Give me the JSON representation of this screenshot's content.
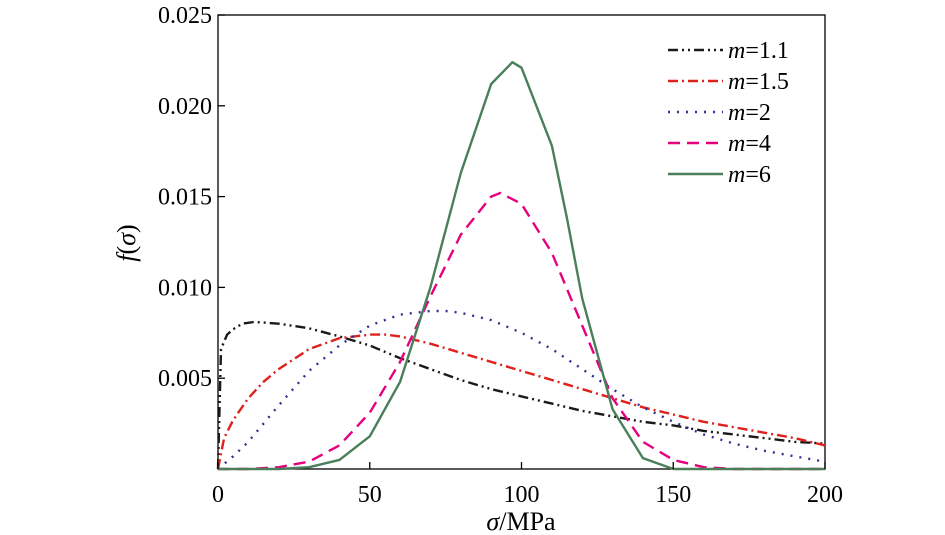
{
  "chart_data": {
    "type": "line",
    "title": "",
    "xlabel": {
      "symbol": "σ",
      "unit": "/MPa"
    },
    "ylabel": {
      "name": "f",
      "arg": "σ"
    },
    "xlim": [
      0,
      200
    ],
    "ylim": [
      0,
      0.025
    ],
    "xticks": [
      "0",
      "50",
      "100",
      "150",
      "200"
    ],
    "yticks": [
      "0.005",
      "0.010",
      "0.015",
      "0.020",
      "0.025"
    ],
    "grid": false,
    "legend_position": "top-right",
    "series": [
      {
        "legend_var": "m",
        "legend_value": "=1.1",
        "color": "#1a1a1a",
        "dash": "10,4,2,4,2,4",
        "x": [
          0,
          1,
          3,
          5,
          8,
          12,
          16,
          20,
          30,
          40,
          50,
          60,
          70,
          80,
          90,
          100,
          110,
          120,
          130,
          140,
          150,
          160,
          170,
          180,
          190,
          200
        ],
        "y": [
          0,
          0.0066,
          0.0074,
          0.0077,
          0.008,
          0.0081,
          0.00805,
          0.008,
          0.00775,
          0.0073,
          0.0068,
          0.0061,
          0.0055,
          0.0049,
          0.0044,
          0.004,
          0.0036,
          0.0032,
          0.0029,
          0.0026,
          0.0024,
          0.0021,
          0.0019,
          0.0017,
          0.0015,
          0.0014
        ]
      },
      {
        "legend_var": "m",
        "legend_value": "=1.5",
        "color": "#e0201b",
        "dash": "10,4,2,4",
        "x": [
          0,
          2,
          5,
          10,
          15,
          20,
          30,
          40,
          50,
          55,
          60,
          70,
          80,
          90,
          100,
          110,
          120,
          130,
          140,
          150,
          160,
          170,
          180,
          190,
          200
        ],
        "y": [
          0,
          0.0017,
          0.0027,
          0.0039,
          0.0048,
          0.0055,
          0.0066,
          0.0072,
          0.0074,
          0.0074,
          0.0073,
          0.0069,
          0.0064,
          0.0059,
          0.0054,
          0.0049,
          0.0044,
          0.0039,
          0.0034,
          0.003,
          0.0026,
          0.0023,
          0.002,
          0.0017,
          0.0013
        ]
      },
      {
        "legend_var": "m",
        "legend_value": "=2",
        "color": "#2e3192",
        "dash": "2,7",
        "x": [
          0,
          5,
          10,
          20,
          30,
          40,
          50,
          60,
          70,
          75,
          80,
          90,
          100,
          110,
          120,
          130,
          140,
          150,
          160,
          170,
          180,
          190,
          200
        ],
        "y": [
          0,
          0.0007,
          0.0015,
          0.0035,
          0.0054,
          0.0068,
          0.0079,
          0.0085,
          0.0087,
          0.0087,
          0.0086,
          0.0082,
          0.0075,
          0.0066,
          0.0055,
          0.0044,
          0.0034,
          0.0026,
          0.0019,
          0.0014,
          0.001,
          0.0007,
          0.0004
        ]
      },
      {
        "legend_var": "m",
        "legend_value": "=4",
        "color": "#e6007e",
        "dash": "12,7",
        "x": [
          0,
          10,
          20,
          30,
          40,
          50,
          60,
          70,
          80,
          90,
          93,
          100,
          110,
          120,
          130,
          140,
          150,
          160,
          170,
          180,
          190,
          200
        ],
        "y": [
          0,
          0.0,
          0.0001,
          0.0004,
          0.0013,
          0.0031,
          0.0059,
          0.0095,
          0.0129,
          0.015,
          0.0152,
          0.0146,
          0.0119,
          0.0079,
          0.0039,
          0.0015,
          0.0005,
          0.0001,
          0.0,
          0.0,
          0.0,
          0.0
        ]
      },
      {
        "legend_var": "m",
        "legend_value": "=6",
        "color": "#4a7f5a",
        "dash": "",
        "x": [
          0,
          20,
          30,
          40,
          50,
          60,
          70,
          80,
          90,
          97,
          100,
          110,
          115,
          120,
          130,
          140,
          150,
          160,
          200
        ],
        "y": [
          0,
          0.0,
          0.0001,
          0.0005,
          0.0018,
          0.0048,
          0.01,
          0.0163,
          0.0212,
          0.0224,
          0.0221,
          0.0178,
          0.0138,
          0.0094,
          0.0033,
          0.0006,
          0.0,
          0.0,
          0.0
        ]
      }
    ]
  }
}
